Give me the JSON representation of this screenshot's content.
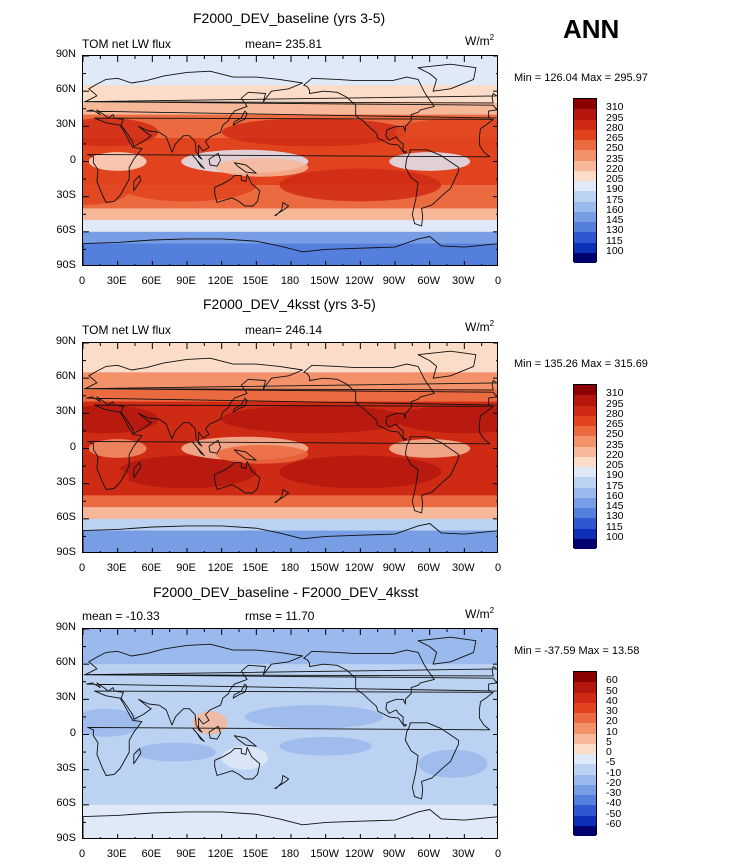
{
  "season": "ANN",
  "panels": [
    {
      "title": "F2000_DEV_baseline (yrs 3-5)",
      "left_label": "TOM net LW flux",
      "stat_label": "mean= 235.81",
      "units_base": "W/m",
      "units_exp": "2",
      "minmax": "Min = 126.04  Max = 295.97",
      "colorbar_levels": [
        "310",
        "295",
        "280",
        "265",
        "250",
        "235",
        "220",
        "205",
        "190",
        "175",
        "160",
        "145",
        "130",
        "115",
        "100"
      ],
      "colorbar_colors": [
        "#8b0000",
        "#b5170e",
        "#cf2a14",
        "#e0431e",
        "#ec6a3f",
        "#f3926a",
        "#f7b899",
        "#fbdcc8",
        "#dfe9f7",
        "#bcd2f2",
        "#9ab9ec",
        "#779ee4",
        "#557fdc",
        "#2f58d0",
        "#0d2fb8",
        "#00006e"
      ]
    },
    {
      "title": "F2000_DEV_4ksst (yrs 3-5)",
      "left_label": "TOM net LW flux",
      "stat_label": "mean= 246.14",
      "units_base": "W/m",
      "units_exp": "2",
      "minmax": "Min = 135.26  Max = 315.69",
      "colorbar_levels": [
        "310",
        "295",
        "280",
        "265",
        "250",
        "235",
        "220",
        "205",
        "190",
        "175",
        "160",
        "145",
        "130",
        "115",
        "100"
      ],
      "colorbar_colors": [
        "#8b0000",
        "#b5170e",
        "#cf2a14",
        "#e0431e",
        "#ec6a3f",
        "#f3926a",
        "#f7b899",
        "#fbdcc8",
        "#dfe9f7",
        "#bcd2f2",
        "#9ab9ec",
        "#779ee4",
        "#557fdc",
        "#2f58d0",
        "#0d2fb8",
        "#00006e"
      ]
    },
    {
      "title": "F2000_DEV_baseline - F2000_DEV_4ksst",
      "left_label": "mean = -10.33",
      "stat_label": "rmse =  11.70",
      "units_base": "W/m",
      "units_exp": "2",
      "minmax": "Min = -37.59  Max =  13.58",
      "colorbar_levels": [
        "60",
        "50",
        "40",
        "30",
        "20",
        "10",
        "5",
        "0",
        "-5",
        "-10",
        "-20",
        "-30",
        "-40",
        "-50",
        "-60"
      ],
      "colorbar_colors": [
        "#8b0000",
        "#b5170e",
        "#cf2a14",
        "#e0431e",
        "#ec6a3f",
        "#f3926a",
        "#f7b899",
        "#fbdcc8",
        "#dfe9f7",
        "#bcd2f2",
        "#9ab9ec",
        "#779ee4",
        "#557fdc",
        "#2f58d0",
        "#0d2fb8",
        "#00006e"
      ]
    }
  ],
  "lat_ticks": [
    "90N",
    "60N",
    "30N",
    "0",
    "30S",
    "60S",
    "90S"
  ],
  "lon_ticks": [
    "0",
    "30E",
    "60E",
    "90E",
    "120E",
    "150E",
    "180",
    "150W",
    "120W",
    "90W",
    "60W",
    "30W",
    "0"
  ]
}
